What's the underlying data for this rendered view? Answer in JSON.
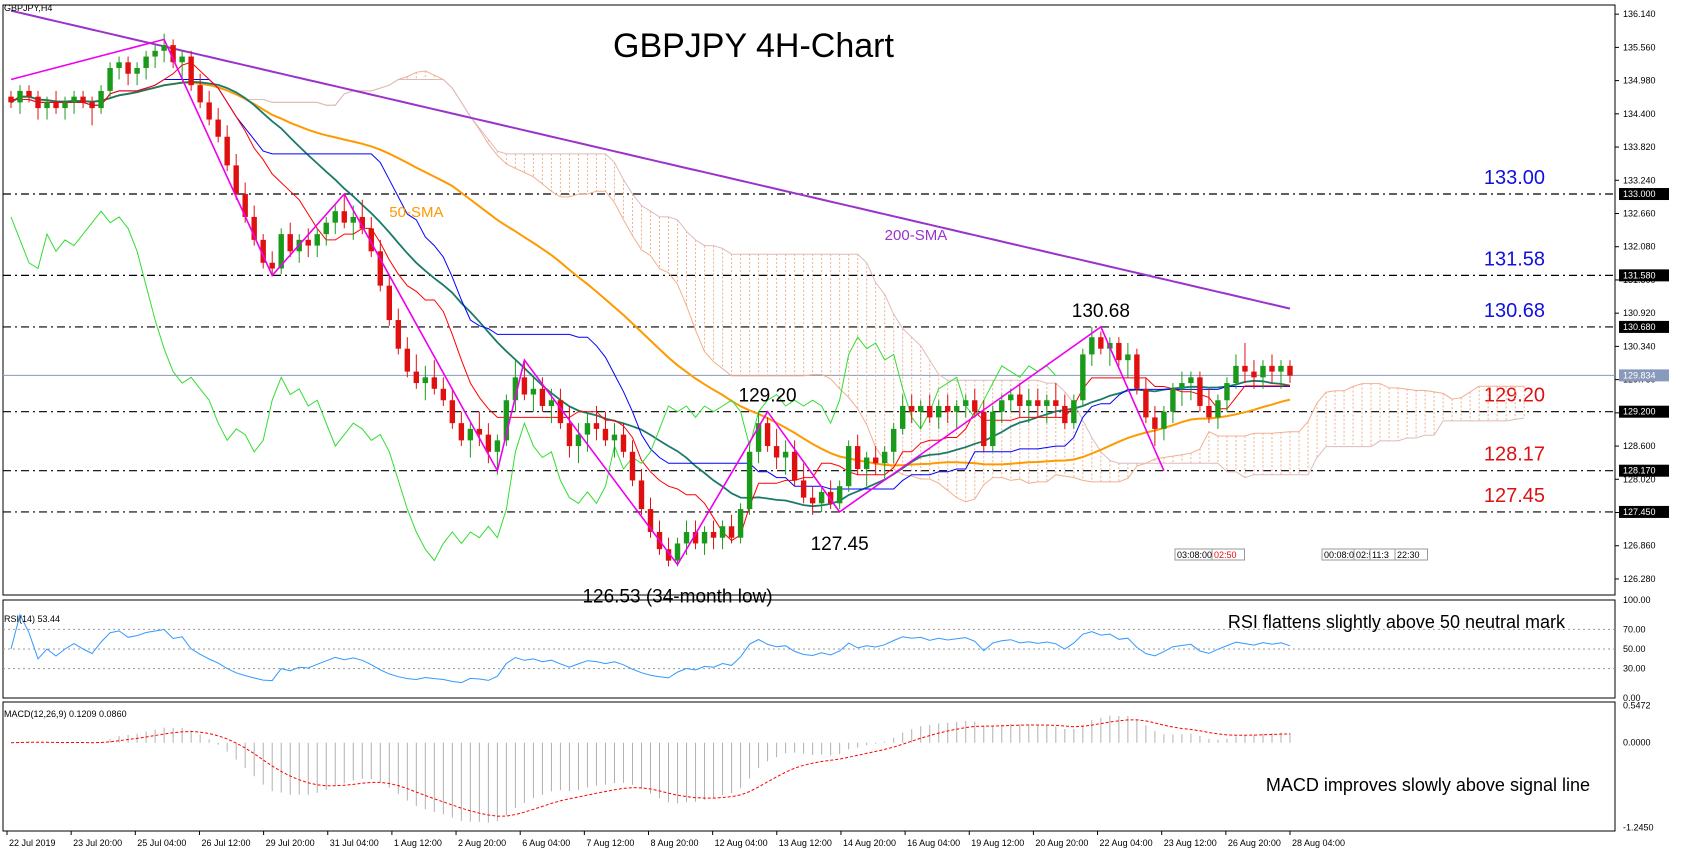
{
  "symbol_label": "GBPJPY,H4",
  "chart_data": {
    "type": "candlestick",
    "title": "GBPJPY 4H-Chart",
    "y_ticks": [
      "136.140",
      "135.560",
      "134.980",
      "134.400",
      "133.820",
      "133.240",
      "132.660",
      "132.080",
      "131.500",
      "130.920",
      "130.340",
      "129.760",
      "129.180",
      "128.600",
      "128.020",
      "127.440",
      "126.860",
      "126.280"
    ],
    "ylim": [
      126.0,
      136.3
    ],
    "current_price": "129.834",
    "x_labels": [
      "22 Jul 2019",
      "23 Jul 20:00",
      "25 Jul 04:00",
      "26 Jul 12:00",
      "29 Jul 20:00",
      "31 Jul 04:00",
      "1 Aug 12:00",
      "2 Aug 20:00",
      "6 Aug 04:00",
      "7 Aug 12:00",
      "8 Aug 20:00",
      "12 Aug 04:00",
      "13 Aug 12:00",
      "14 Aug 20:00",
      "16 Aug 04:00",
      "19 Aug 12:00",
      "20 Aug 20:00",
      "22 Aug 04:00",
      "23 Aug 12:00",
      "26 Aug 20:00",
      "28 Aug 04:00"
    ],
    "levels": [
      {
        "value": 133.0,
        "label": "133.00",
        "axis_label": "133.000",
        "color": "#1010e0"
      },
      {
        "value": 131.58,
        "label": "131.58",
        "axis_label": "131.580",
        "color": "#1010e0"
      },
      {
        "value": 130.68,
        "label": "130.68",
        "axis_label": "130.680",
        "color": "#1010e0"
      },
      {
        "value": 129.2,
        "label": "129.20",
        "axis_label": "129.200",
        "color": "#e01010"
      },
      {
        "value": 128.17,
        "label": "128.17",
        "axis_label": "128.170",
        "color": "#e01010"
      },
      {
        "value": 127.45,
        "label": "127.45",
        "axis_label": "127.450",
        "color": "#e01010"
      }
    ],
    "swing_points": [
      {
        "bar": 0,
        "price": 135.0
      },
      {
        "bar": 17,
        "price": 135.7
      },
      {
        "bar": 29,
        "price": 131.58
      },
      {
        "bar": 37,
        "price": 133.0
      },
      {
        "bar": 54,
        "price": 128.17
      },
      {
        "bar": 57,
        "price": 130.1
      },
      {
        "bar": 74,
        "price": 126.53
      },
      {
        "bar": 84,
        "price": 129.2
      },
      {
        "bar": 92,
        "price": 127.45
      },
      {
        "bar": 121,
        "price": 130.68
      },
      {
        "bar": 128,
        "price": 128.17
      }
    ],
    "annotations": [
      {
        "text": "130.68",
        "bar": 121,
        "price": 130.68,
        "pos": "above"
      },
      {
        "text": "129.20",
        "bar": 84,
        "price": 129.2,
        "pos": "above"
      },
      {
        "text": "127.45",
        "bar": 92,
        "price": 127.45,
        "pos": "below"
      },
      {
        "text": "126.53 (34-month low)",
        "bar": 74,
        "price": 126.53,
        "pos": "below"
      }
    ],
    "series_labels": {
      "sma50": "50-SMA",
      "sma200": "200-SMA"
    },
    "session_boxes": [
      "03:08:00",
      "02:50",
      "00:08:00",
      "02:5",
      "11:3",
      "22:30"
    ],
    "candles": [
      [
        134.7,
        134.8,
        134.5,
        134.6
      ],
      [
        134.6,
        134.9,
        134.4,
        134.8
      ],
      [
        134.8,
        134.9,
        134.6,
        134.7
      ],
      [
        134.7,
        134.8,
        134.3,
        134.5
      ],
      [
        134.5,
        134.7,
        134.3,
        134.6
      ],
      [
        134.6,
        134.8,
        134.4,
        134.5
      ],
      [
        134.5,
        134.7,
        134.3,
        134.6
      ],
      [
        134.6,
        134.8,
        134.4,
        134.7
      ],
      [
        134.7,
        134.8,
        134.5,
        134.6
      ],
      [
        134.6,
        134.7,
        134.2,
        134.5
      ],
      [
        134.5,
        134.9,
        134.4,
        134.8
      ],
      [
        134.8,
        135.3,
        134.7,
        135.2
      ],
      [
        135.2,
        135.4,
        135.0,
        135.3
      ],
      [
        135.3,
        135.4,
        134.9,
        135.1
      ],
      [
        135.1,
        135.3,
        134.9,
        135.2
      ],
      [
        135.2,
        135.5,
        135.0,
        135.4
      ],
      [
        135.4,
        135.6,
        135.2,
        135.5
      ],
      [
        135.5,
        135.8,
        135.3,
        135.6
      ],
      [
        135.6,
        135.7,
        135.2,
        135.3
      ],
      [
        135.3,
        135.5,
        135.0,
        135.4
      ],
      [
        135.4,
        135.5,
        134.8,
        134.9
      ],
      [
        134.9,
        135.1,
        134.5,
        134.6
      ],
      [
        134.6,
        134.8,
        134.2,
        134.3
      ],
      [
        134.3,
        134.5,
        133.9,
        134.0
      ],
      [
        134.0,
        134.2,
        133.4,
        133.5
      ],
      [
        133.5,
        133.7,
        132.9,
        133.0
      ],
      [
        133.0,
        133.2,
        132.5,
        132.6
      ],
      [
        132.6,
        132.8,
        132.1,
        132.2
      ],
      [
        132.2,
        132.3,
        131.7,
        131.8
      ],
      [
        131.8,
        132.0,
        131.6,
        131.7
      ],
      [
        131.7,
        132.4,
        131.6,
        132.3
      ],
      [
        132.3,
        132.5,
        131.9,
        132.0
      ],
      [
        132.0,
        132.3,
        131.8,
        132.2
      ],
      [
        132.2,
        132.4,
        131.9,
        132.1
      ],
      [
        132.1,
        132.4,
        131.9,
        132.3
      ],
      [
        132.3,
        132.6,
        132.1,
        132.5
      ],
      [
        132.5,
        132.8,
        132.3,
        132.7
      ],
      [
        132.7,
        133.0,
        132.4,
        132.5
      ],
      [
        132.5,
        132.8,
        132.2,
        132.6
      ],
      [
        132.6,
        132.9,
        132.3,
        132.4
      ],
      [
        132.4,
        132.6,
        131.9,
        132.0
      ],
      [
        132.0,
        132.2,
        131.3,
        131.4
      ],
      [
        131.4,
        131.6,
        130.7,
        130.8
      ],
      [
        130.8,
        131.0,
        130.2,
        130.3
      ],
      [
        130.3,
        130.5,
        129.8,
        129.9
      ],
      [
        129.9,
        130.2,
        129.6,
        129.7
      ],
      [
        129.7,
        130.0,
        129.4,
        129.8
      ],
      [
        129.8,
        130.1,
        129.5,
        129.6
      ],
      [
        129.6,
        129.8,
        129.3,
        129.4
      ],
      [
        129.4,
        129.6,
        128.9,
        129.0
      ],
      [
        129.0,
        129.2,
        128.6,
        128.7
      ],
      [
        128.7,
        129.0,
        128.4,
        128.9
      ],
      [
        128.9,
        129.2,
        128.6,
        128.8
      ],
      [
        128.8,
        129.0,
        128.3,
        128.5
      ],
      [
        128.5,
        128.8,
        128.1,
        128.7
      ],
      [
        128.7,
        129.5,
        128.6,
        129.4
      ],
      [
        129.4,
        130.1,
        129.2,
        129.8
      ],
      [
        129.8,
        130.1,
        129.4,
        129.5
      ],
      [
        129.5,
        129.8,
        129.2,
        129.6
      ],
      [
        129.6,
        129.8,
        129.2,
        129.3
      ],
      [
        129.3,
        129.6,
        129.0,
        129.4
      ],
      [
        129.4,
        129.6,
        128.9,
        129.0
      ],
      [
        129.0,
        129.3,
        128.4,
        128.6
      ],
      [
        128.6,
        129.0,
        128.3,
        128.8
      ],
      [
        128.8,
        129.2,
        128.5,
        129.0
      ],
      [
        129.0,
        129.3,
        128.7,
        128.9
      ],
      [
        128.9,
        129.2,
        128.6,
        128.7
      ],
      [
        128.7,
        129.0,
        128.4,
        128.8
      ],
      [
        128.8,
        129.0,
        128.4,
        128.5
      ],
      [
        128.5,
        128.7,
        127.9,
        128.0
      ],
      [
        128.0,
        128.2,
        127.4,
        127.5
      ],
      [
        127.5,
        127.7,
        127.0,
        127.1
      ],
      [
        127.1,
        127.3,
        126.7,
        126.8
      ],
      [
        126.8,
        127.0,
        126.5,
        126.6
      ],
      [
        126.6,
        127.0,
        126.5,
        126.9
      ],
      [
        126.9,
        127.3,
        126.7,
        127.1
      ],
      [
        127.1,
        127.3,
        126.8,
        126.9
      ],
      [
        126.9,
        127.2,
        126.7,
        127.1
      ],
      [
        127.1,
        127.3,
        126.8,
        127.0
      ],
      [
        127.0,
        127.3,
        126.8,
        127.2
      ],
      [
        127.2,
        127.4,
        126.9,
        127.0
      ],
      [
        127.0,
        127.6,
        126.9,
        127.5
      ],
      [
        127.5,
        128.6,
        127.4,
        128.5
      ],
      [
        128.5,
        129.2,
        128.3,
        129.0
      ],
      [
        129.0,
        129.1,
        128.5,
        128.6
      ],
      [
        128.6,
        128.9,
        128.2,
        128.4
      ],
      [
        128.4,
        128.7,
        128.1,
        128.5
      ],
      [
        128.5,
        128.7,
        127.9,
        128.0
      ],
      [
        128.0,
        128.3,
        127.6,
        127.7
      ],
      [
        127.7,
        127.9,
        127.4,
        127.6
      ],
      [
        127.6,
        127.9,
        127.45,
        127.8
      ],
      [
        127.8,
        128.0,
        127.5,
        127.6
      ],
      [
        127.6,
        128.0,
        127.5,
        127.9
      ],
      [
        127.9,
        128.7,
        127.8,
        128.6
      ],
      [
        128.6,
        128.8,
        128.1,
        128.2
      ],
      [
        128.2,
        128.5,
        127.9,
        128.4
      ],
      [
        128.4,
        128.6,
        128.1,
        128.3
      ],
      [
        128.3,
        128.6,
        128.0,
        128.5
      ],
      [
        128.5,
        129.0,
        128.3,
        128.9
      ],
      [
        128.9,
        129.5,
        128.8,
        129.3
      ],
      [
        129.3,
        129.5,
        129.0,
        129.2
      ],
      [
        129.2,
        129.4,
        128.9,
        129.3
      ],
      [
        129.3,
        129.5,
        129.0,
        129.1
      ],
      [
        129.1,
        129.4,
        128.9,
        129.3
      ],
      [
        129.3,
        129.5,
        129.0,
        129.2
      ],
      [
        129.2,
        129.4,
        128.9,
        129.3
      ],
      [
        129.3,
        129.5,
        129.1,
        129.4
      ],
      [
        129.4,
        129.6,
        129.1,
        129.2
      ],
      [
        129.2,
        129.4,
        128.5,
        128.6
      ],
      [
        128.6,
        129.3,
        128.5,
        129.2
      ],
      [
        129.2,
        129.5,
        129.0,
        129.4
      ],
      [
        129.4,
        129.6,
        129.2,
        129.5
      ],
      [
        129.5,
        129.7,
        129.1,
        129.3
      ],
      [
        129.3,
        129.6,
        129.0,
        129.4
      ],
      [
        129.4,
        129.6,
        129.1,
        129.3
      ],
      [
        129.3,
        129.5,
        129.0,
        129.4
      ],
      [
        129.4,
        129.7,
        129.1,
        129.3
      ],
      [
        129.3,
        129.5,
        128.9,
        129.0
      ],
      [
        129.0,
        129.5,
        128.9,
        129.4
      ],
      [
        129.4,
        130.3,
        129.3,
        130.2
      ],
      [
        130.2,
        130.68,
        130.0,
        130.5
      ],
      [
        130.5,
        130.6,
        130.2,
        130.3
      ],
      [
        130.3,
        130.5,
        130.0,
        130.4
      ],
      [
        130.4,
        130.5,
        130.0,
        130.1
      ],
      [
        130.1,
        130.4,
        129.8,
        130.2
      ],
      [
        130.2,
        130.3,
        129.5,
        129.6
      ],
      [
        129.6,
        129.8,
        129.0,
        129.1
      ],
      [
        129.1,
        129.3,
        128.6,
        128.9
      ],
      [
        128.9,
        129.3,
        128.7,
        129.2
      ],
      [
        129.2,
        129.7,
        129.0,
        129.6
      ],
      [
        129.6,
        129.9,
        129.3,
        129.7
      ],
      [
        129.7,
        129.9,
        129.4,
        129.8
      ],
      [
        129.8,
        129.9,
        129.2,
        129.3
      ],
      [
        129.3,
        129.6,
        129.0,
        129.1
      ],
      [
        129.1,
        129.5,
        128.9,
        129.4
      ],
      [
        129.4,
        129.8,
        129.2,
        129.7
      ],
      [
        129.7,
        130.2,
        129.6,
        130.0
      ],
      [
        130.0,
        130.4,
        129.7,
        129.9
      ],
      [
        129.9,
        130.1,
        129.6,
        129.8
      ],
      [
        129.8,
        130.1,
        129.6,
        130.0
      ],
      [
        130.0,
        130.2,
        129.7,
        129.9
      ],
      [
        129.9,
        130.1,
        129.6,
        130.0
      ],
      [
        130.0,
        130.1,
        129.7,
        129.83
      ]
    ]
  },
  "rsi": {
    "label": "RSI(14) 53.44",
    "ticks": [
      "100.00",
      "70.00",
      "50.00",
      "30.00",
      "0.00"
    ],
    "levels": [
      30,
      50,
      70
    ],
    "caption": "RSI flattens slightly above 50 neutral mark"
  },
  "macd": {
    "label": "MACD(12,26,9) 0.1209 0.0860",
    "ticks": [
      "0.5472",
      "0.0000",
      "-1.2450"
    ],
    "ylim": [
      -1.3,
      0.6
    ],
    "caption": "MACD improves slowly above signal line"
  },
  "colors": {
    "bull": "#1a9a1a",
    "bear": "#e01010",
    "sma50": "#ff9900",
    "sma200": "#9933cc",
    "tenkan": "#ff0000",
    "kijun": "#0000ff",
    "chikou": "#33dd33",
    "fast_ma": "#1a7a6a",
    "zigzag": "#ee00ee",
    "cloud": "#f0b090",
    "rsi": "#3399ff",
    "macd_hist": "#b0b0b0",
    "macd_signal": "#ff0000"
  }
}
